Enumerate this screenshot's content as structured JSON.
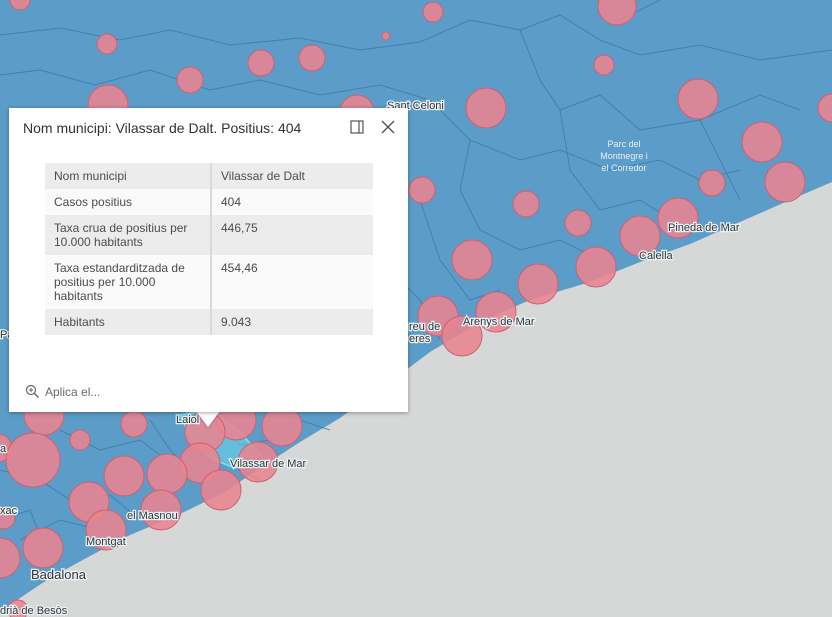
{
  "popup": {
    "title": "Nom municipi: Vilassar de Dalt. Positius: 404",
    "rows": [
      {
        "key": "Nom municipi",
        "value": "Vilassar de Dalt"
      },
      {
        "key": "Casos positius",
        "value": "404"
      },
      {
        "key": "Taxa crua de positius per 10.000 habitants",
        "value": "446,75"
      },
      {
        "key": "Taxa estandarditzada de positius per 10.000 habitants",
        "value": "454,46"
      },
      {
        "key": "Habitants",
        "value": "9.043"
      }
    ],
    "zoom_action_label": "Aplica el...",
    "icons": [
      "dock-icon",
      "close-icon",
      "zoom-to-icon"
    ]
  },
  "map": {
    "labels": {
      "sant_celoni": "Sant Celoni",
      "parc_line1": "Parc del",
      "parc_line2": "Montnegre i",
      "parc_line3": "el Corredor",
      "pineda": "Pineda de Mar",
      "calella": "Calella",
      "arenys": "Arenys de Mar",
      "canet_partial": "reu de",
      "canet_partial2": "eres",
      "vilassar_mar": "Vilassar de Mar",
      "masnou": "el Masnou",
      "montgat": "Montgat",
      "badalona": "Badalona",
      "sant_adria": "drià de Besòs",
      "partial_a": "a",
      "partial_xac": "xac",
      "partial_p": "Pa",
      "partial_laiol": "Laiol"
    },
    "colors": {
      "land": "#5b9cc9",
      "sea": "#d6d8d8",
      "boundary": "#3f7aa6",
      "bubble_fill": "#e8848f",
      "bubble_stroke": "#d0606e",
      "highlight": "#6fe0f0"
    }
  }
}
